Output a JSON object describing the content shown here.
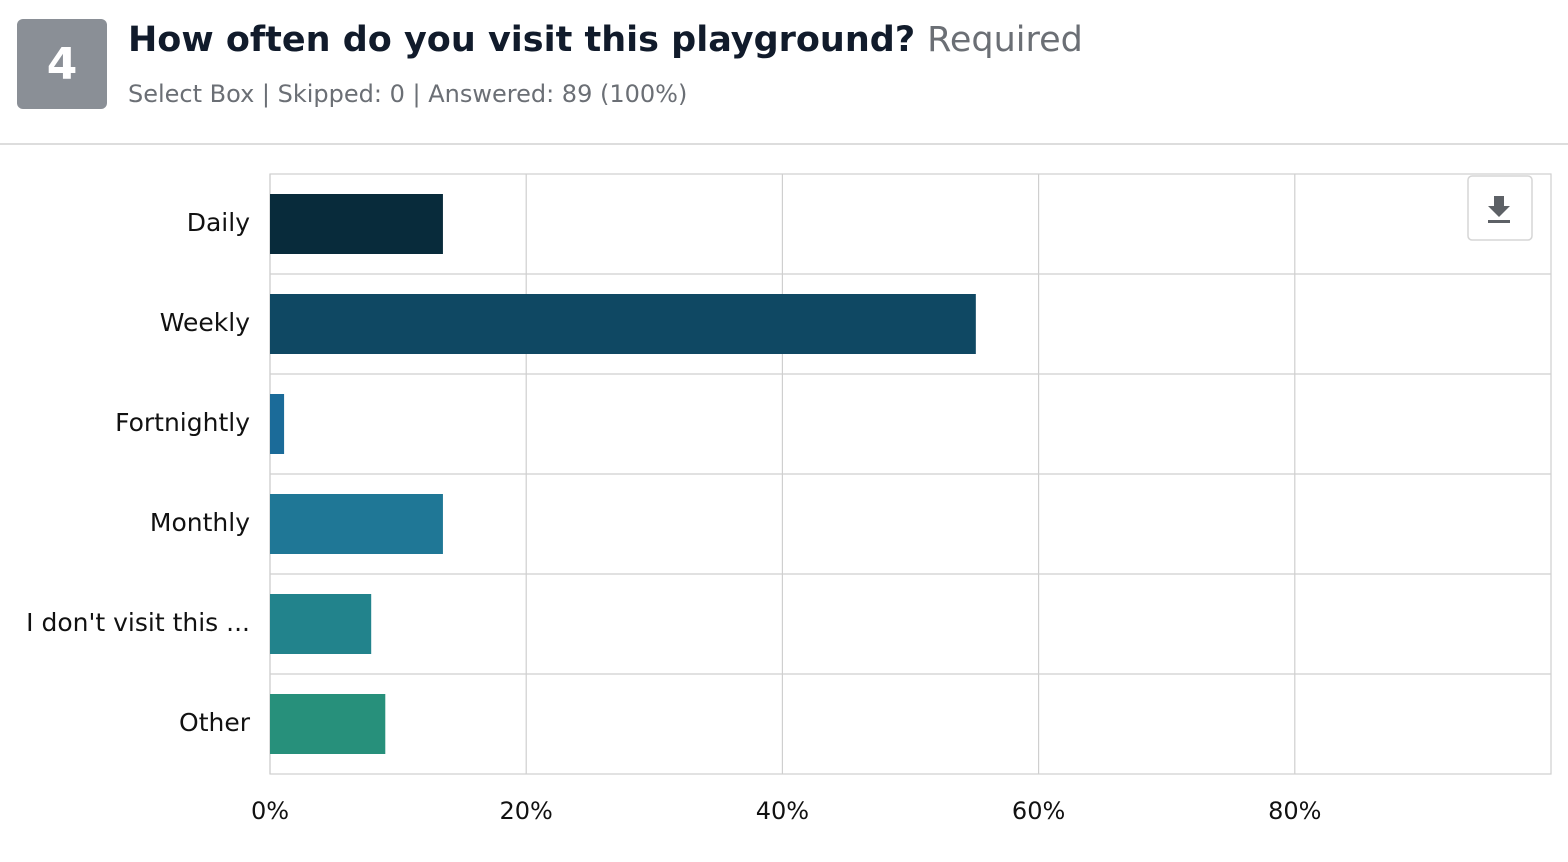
{
  "question": {
    "number": "4",
    "title": "How often do you visit this playground?",
    "required": "Required",
    "subtitle": "Select Box | Skipped: 0 | Answered: 89 (100%)"
  },
  "chart_data": {
    "type": "bar",
    "orientation": "horizontal",
    "categories": [
      "Daily",
      "Weekly",
      "Fortnightly",
      "Monthly",
      "I don't visit this ...",
      "Other"
    ],
    "values": [
      13.5,
      55.1,
      1.1,
      13.5,
      7.9,
      9.0
    ],
    "colors": [
      "#082b3b",
      "#0f4863",
      "#1b6b99",
      "#1f7796",
      "#22838c",
      "#27907b"
    ],
    "xlim": [
      0,
      100
    ],
    "xticks": [
      {
        "value": 0,
        "label": "0%"
      },
      {
        "value": 20,
        "label": "20%"
      },
      {
        "value": 40,
        "label": "40%"
      },
      {
        "value": 60,
        "label": "60%"
      },
      {
        "value": 80,
        "label": "80%"
      }
    ],
    "grid": true
  }
}
